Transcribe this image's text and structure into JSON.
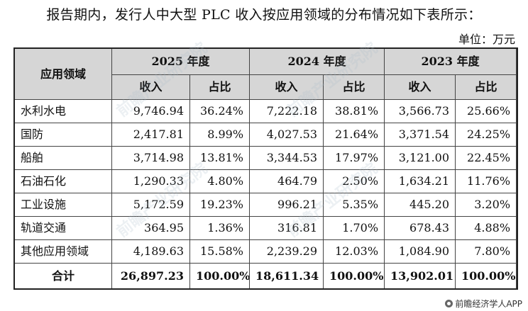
{
  "intro_text": "报告期内，发行人中大型 PLC 收入按应用领域的分布情况如下表所示：",
  "unit_text": "单位：万元",
  "watermark_text": "前瞻产业研究院",
  "table": {
    "header_category": "应用领域",
    "years": [
      "2025 年度",
      "2024 年度",
      "2023 年度"
    ],
    "sub_income": "收入",
    "sub_share": "占比",
    "rows": [
      {
        "name": "水利水电",
        "c": [
          "9,746.94",
          "36.24%",
          "7,222.18",
          "38.81%",
          "3,566.73",
          "25.66%"
        ]
      },
      {
        "name": "国防",
        "c": [
          "2,417.81",
          "8.99%",
          "4,027.53",
          "21.64%",
          "3,371.54",
          "24.25%"
        ]
      },
      {
        "name": "船舶",
        "c": [
          "3,714.98",
          "13.81%",
          "3,344.53",
          "17.97%",
          "3,121.00",
          "22.45%"
        ]
      },
      {
        "name": "石油石化",
        "c": [
          "1,290.33",
          "4.80%",
          "464.79",
          "2.50%",
          "1,634.21",
          "11.76%"
        ]
      },
      {
        "name": "工业设施",
        "c": [
          "5,172.59",
          "19.23%",
          "996.21",
          "5.35%",
          "445.20",
          "3.20%"
        ]
      },
      {
        "name": "轨道交通",
        "c": [
          "364.95",
          "1.36%",
          "316.81",
          "1.70%",
          "678.43",
          "4.88%"
        ]
      },
      {
        "name": "其他应用领域",
        "c": [
          "4,189.63",
          "15.58%",
          "2,239.29",
          "12.03%",
          "1,084.90",
          "7.80%"
        ]
      }
    ],
    "total": {
      "name": "合计",
      "c": [
        "26,897.23",
        "100.00%",
        "18,611.34",
        "100.00%",
        "13,902.01",
        "100.00%"
      ]
    }
  },
  "credit_text": "前瞻经济学人APP",
  "credit_icon": "logo-icon"
}
